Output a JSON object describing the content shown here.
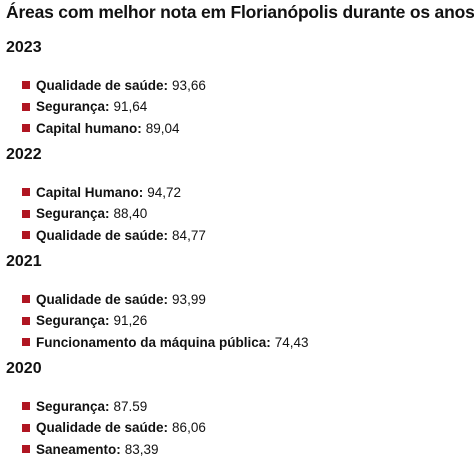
{
  "title": "Áreas com melhor nota em Florianópolis durante os anos:",
  "accent_color": "#b01622",
  "sections": [
    {
      "year": "2023",
      "items": [
        {
          "label": "Qualidade de saúde:",
          "value": "93,66"
        },
        {
          "label": "Segurança:",
          "value": "91,64"
        },
        {
          "label": "Capital humano:",
          "value": "89,04"
        }
      ]
    },
    {
      "year": "2022",
      "items": [
        {
          "label": "Capital Humano:",
          "value": "94,72"
        },
        {
          "label": "Segurança:",
          "value": "88,40"
        },
        {
          "label": "Qualidade de saúde:",
          "value": "84,77"
        }
      ]
    },
    {
      "year": "2021",
      "items": [
        {
          "label": "Qualidade de saúde:",
          "value": "93,99"
        },
        {
          "label": "Segurança:",
          "value": "91,26"
        },
        {
          "label": "Funcionamento da máquina pública:",
          "value": "74,43"
        }
      ]
    },
    {
      "year": "2020",
      "items": [
        {
          "label": "Segurança:",
          "value": "87.59"
        },
        {
          "label": "Qualidade de saúde:",
          "value": "86,06"
        },
        {
          "label": "Saneamento:",
          "value": "83,39"
        }
      ]
    }
  ]
}
